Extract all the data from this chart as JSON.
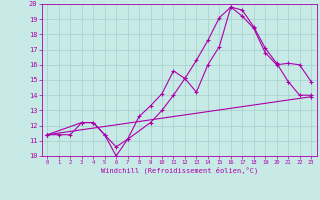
{
  "background_color": "#c8eae6",
  "line_color": "#aa00aa",
  "grid_color": "#a0d0cc",
  "xlabel": "Windchill (Refroidissement éolien,°C)",
  "xlim": [
    -0.5,
    23.5
  ],
  "ylim": [
    10,
    20
  ],
  "yticks": [
    10,
    11,
    12,
    13,
    14,
    15,
    16,
    17,
    18,
    19,
    20
  ],
  "xticks": [
    0,
    1,
    2,
    3,
    4,
    5,
    6,
    7,
    8,
    9,
    10,
    11,
    12,
    13,
    14,
    15,
    16,
    17,
    18,
    19,
    20,
    21,
    22,
    23
  ],
  "line1_x": [
    0,
    1,
    2,
    3,
    4,
    5,
    6,
    7,
    8,
    9,
    10,
    11,
    12,
    13,
    14,
    15,
    16,
    17,
    18,
    19,
    20,
    21,
    22,
    23
  ],
  "line1_y": [
    11.4,
    11.4,
    11.4,
    12.2,
    12.2,
    11.4,
    10.0,
    11.1,
    12.6,
    13.3,
    14.1,
    15.6,
    15.1,
    14.2,
    16.0,
    17.2,
    19.8,
    19.6,
    18.5,
    17.1,
    16.1,
    14.9,
    14.0,
    14.0
  ],
  "line2_x": [
    0,
    3,
    4,
    5,
    6,
    7,
    9,
    10,
    11,
    12,
    13,
    14,
    15,
    16,
    17,
    18,
    19,
    20,
    21,
    22,
    23
  ],
  "line2_y": [
    11.4,
    12.2,
    12.2,
    11.4,
    10.6,
    11.1,
    12.2,
    13.0,
    14.0,
    15.1,
    16.3,
    17.6,
    19.1,
    19.8,
    19.2,
    18.4,
    16.8,
    16.0,
    16.1,
    16.0,
    14.9
  ],
  "line3_x": [
    0,
    23
  ],
  "line3_y": [
    11.4,
    13.9
  ]
}
